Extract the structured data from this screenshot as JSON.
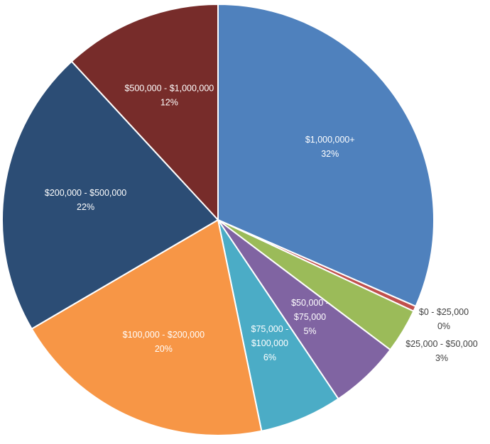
{
  "chart_data": {
    "type": "pie",
    "title": "",
    "slices": [
      {
        "label": "$1,000,000+",
        "percent_label": "32%",
        "value": 32.2,
        "color": "#4F81BD",
        "label_lines": [
          "$1,000,000+"
        ]
      },
      {
        "label": "$0 - $25,000",
        "percent_label": "0%",
        "value": 0.4,
        "color": "#C0504D",
        "label_lines": [
          "$0 - $25,000"
        ]
      },
      {
        "label": "$25,000 - $50,000",
        "percent_label": "3%",
        "value": 3.4,
        "color": "#9BBB59",
        "label_lines": [
          "$25,000 - $50,000"
        ]
      },
      {
        "label": "$50,000 - $75,000",
        "percent_label": "5%",
        "value": 5.4,
        "color": "#8064A2",
        "label_lines": [
          "$50,000 -",
          "$75,000"
        ]
      },
      {
        "label": "$75,000 - $100,000",
        "percent_label": "6%",
        "value": 6.3,
        "color": "#4BACC6",
        "label_lines": [
          "$75,000 -",
          "$100,000"
        ]
      },
      {
        "label": "$100,000 - $200,000",
        "percent_label": "20%",
        "value": 20.2,
        "color": "#F79646",
        "label_lines": [
          "$100,000 - $200,000"
        ]
      },
      {
        "label": "$200,000 - $500,000",
        "percent_label": "22%",
        "value": 22.0,
        "color": "#2C4D75",
        "label_lines": [
          "$200,000 - $500,000"
        ]
      },
      {
        "label": "$500,000 - $1,000,000",
        "percent_label": "12%",
        "value": 12.1,
        "color": "#772C2A",
        "label_lines": [
          "$500,000 - $1,000,000"
        ]
      }
    ],
    "start_angle_deg": 0,
    "direction": "clockwise",
    "legend": "none",
    "data_labels": "category and percentage"
  }
}
